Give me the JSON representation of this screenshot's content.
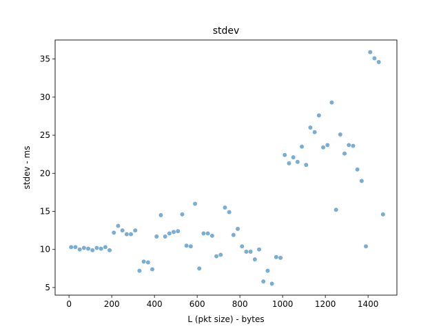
{
  "chart_data": {
    "type": "scatter",
    "title": "stdev",
    "xlabel": "L (pkt size) - bytes",
    "ylabel": "stdev - ms",
    "xlim": [
      -65,
      1535
    ],
    "ylim": [
      4.0,
      37.5
    ],
    "xticks": [
      0,
      200,
      400,
      600,
      800,
      1000,
      1200,
      1400
    ],
    "yticks": [
      5,
      10,
      15,
      20,
      25,
      30,
      35
    ],
    "grid": false,
    "point_color": "#1f77b4",
    "series": [
      {
        "x": [
          10,
          30,
          50,
          70,
          90,
          110,
          130,
          150,
          170,
          190,
          210,
          230,
          250,
          270,
          290,
          310,
          330,
          350,
          370,
          390,
          410,
          430,
          450,
          470,
          490,
          510,
          530,
          550,
          570,
          590,
          610,
          630,
          650,
          670,
          690,
          710,
          730,
          750,
          770,
          790,
          810,
          830,
          850,
          870,
          890,
          910,
          930,
          950,
          970,
          990,
          1010,
          1030,
          1050,
          1070,
          1090,
          1110,
          1130,
          1150,
          1170,
          1190,
          1210,
          1230,
          1250,
          1270,
          1290,
          1310,
          1330,
          1350,
          1370,
          1390,
          1410,
          1430,
          1450,
          1470
        ],
        "y": [
          10.3,
          10.3,
          10.0,
          10.2,
          10.1,
          9.9,
          10.2,
          10.1,
          10.3,
          9.9,
          12.2,
          13.1,
          12.5,
          12.0,
          12.0,
          12.5,
          7.2,
          8.4,
          8.3,
          7.4,
          11.7,
          14.5,
          11.7,
          12.1,
          12.3,
          12.4,
          14.6,
          10.5,
          10.4,
          16.0,
          7.5,
          12.1,
          12.1,
          11.8,
          9.1,
          9.3,
          15.5,
          14.9,
          11.9,
          12.7,
          10.4,
          9.7,
          9.7,
          8.7,
          10.0,
          5.8,
          7.2,
          5.5,
          9.0,
          8.9,
          22.4,
          21.3,
          22.1,
          21.5,
          23.5,
          21.1,
          26.0,
          25.4,
          27.6,
          23.4,
          23.7,
          29.3,
          15.2,
          25.1,
          22.6,
          23.7,
          23.6,
          20.5,
          19.0,
          10.4,
          35.9,
          35.1,
          34.6,
          14.6
        ]
      }
    ]
  }
}
